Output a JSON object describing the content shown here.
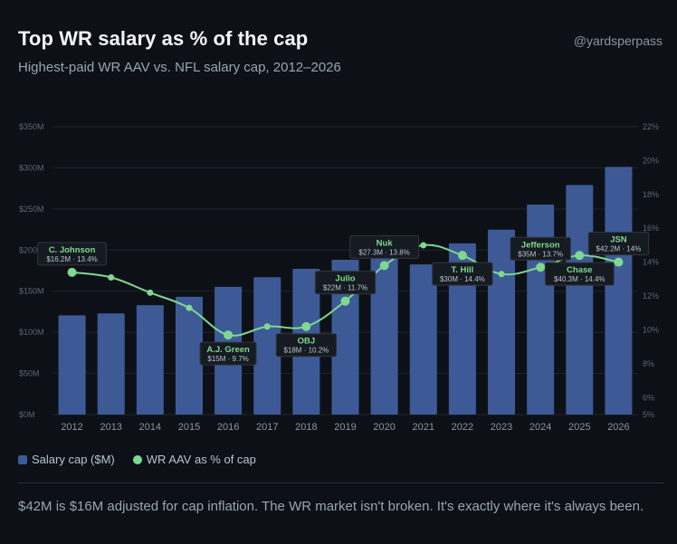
{
  "header": {
    "title": "Top WR salary as % of the cap",
    "subtitle": "Highest-paid WR AAV vs. NFL salary cap, 2012–2026",
    "handle": "@yardsperpass"
  },
  "legend": {
    "bar_label": "Salary cap ($M)",
    "line_label": "WR AAV as % of cap"
  },
  "footnote": "$42M is $16M adjusted for cap inflation. The WR market isn't broken. It's exactly where it's always been.",
  "colors": {
    "background": "#0d1117",
    "bar": "#3d5a96",
    "line": "#7fd88f",
    "grid": "#1e252e",
    "tick": "#5d6570"
  },
  "chart_data": {
    "type": "bar",
    "categories": [
      "2012",
      "2013",
      "2014",
      "2015",
      "2016",
      "2017",
      "2018",
      "2019",
      "2020",
      "2021",
      "2022",
      "2023",
      "2024",
      "2025",
      "2026"
    ],
    "series": [
      {
        "name": "Salary cap ($M)",
        "type": "bar",
        "axis": "left",
        "values": [
          120.6,
          123.0,
          133.0,
          143.28,
          155.27,
          167.0,
          177.2,
          188.2,
          198.2,
          182.5,
          208.2,
          224.8,
          255.4,
          279.2,
          301.2
        ]
      },
      {
        "name": "WR AAV as % of cap",
        "type": "line",
        "axis": "right",
        "values": [
          13.4,
          13.1,
          12.2,
          11.3,
          9.7,
          10.2,
          10.2,
          11.7,
          13.8,
          15.0,
          14.4,
          13.3,
          13.7,
          14.4,
          14.0
        ]
      }
    ],
    "left_axis": {
      "min": 0,
      "max": 350,
      "ticks": [
        "$0M",
        "$50M",
        "$100M",
        "$150M",
        "$200M",
        "$250M",
        "$300M",
        "$350M"
      ],
      "tick_values": [
        0,
        50,
        100,
        150,
        200,
        250,
        300,
        350
      ]
    },
    "right_axis": {
      "min": 5,
      "max": 22,
      "ticks": [
        "5%",
        "6%",
        "8%",
        "10%",
        "12%",
        "14%",
        "16%",
        "18%",
        "20%",
        "22%"
      ],
      "tick_values": [
        5,
        6,
        8,
        10,
        12,
        14,
        16,
        18,
        20,
        22
      ]
    },
    "annotations": [
      {
        "index": 0,
        "name": "C. Johnson",
        "detail": "$16.2M · 13.4%",
        "position": "above"
      },
      {
        "index": 4,
        "name": "A.J. Green",
        "detail": "$15M · 9.7%",
        "position": "below"
      },
      {
        "index": 6,
        "name": "OBJ",
        "detail": "$18M · 10.2%",
        "position": "below"
      },
      {
        "index": 7,
        "name": "Julio",
        "detail": "$22M · 11.7%",
        "position": "above"
      },
      {
        "index": 8,
        "name": "Nuk",
        "detail": "$27.3M · 13.8%",
        "position": "above"
      },
      {
        "index": 10,
        "name": "T. Hill",
        "detail": "$30M · 14.4%",
        "position": "below"
      },
      {
        "index": 12,
        "name": "Jefferson",
        "detail": "$35M · 13.7%",
        "position": "above"
      },
      {
        "index": 13,
        "name": "Chase",
        "detail": "$40.3M · 14.4%",
        "position": "below"
      },
      {
        "index": 14,
        "name": "JSN",
        "detail": "$42.2M · 14%",
        "position": "above"
      }
    ],
    "grid": true,
    "legend_position": "bottom-left"
  }
}
